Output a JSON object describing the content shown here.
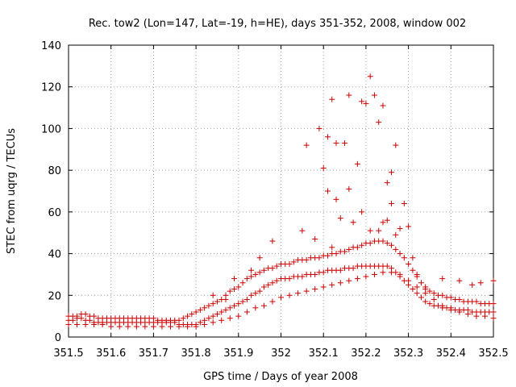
{
  "chart_data": {
    "type": "scatter",
    "title": "Rec. tow2 (Lon=147, Lat=-19, h=HE), days 351-352, 2008, window 002",
    "xlabel": "GPS time / Days of year 2008",
    "ylabel": "STEC from uqrg / TECUs",
    "xlim": [
      351.5,
      352.5
    ],
    "ylim": [
      0,
      140
    ],
    "x_ticks": [
      351.5,
      351.6,
      351.7,
      351.8,
      351.9,
      352.0,
      352.1,
      352.2,
      352.3,
      352.4,
      352.5
    ],
    "x_tick_labels": [
      "351.5",
      "351.6",
      "351.7",
      "351.8",
      "351.9",
      "352",
      "352.1",
      "352.2",
      "352.3",
      "352.4",
      "352.5"
    ],
    "y_ticks": [
      0,
      20,
      40,
      60,
      80,
      100,
      120,
      140
    ],
    "y_tick_labels": [
      "0",
      "20",
      "40",
      "60",
      "80",
      "100",
      "120",
      "140"
    ],
    "grid": true,
    "marker": "+",
    "color": "#cc0000",
    "series": [
      {
        "name": "STEC",
        "x": [
          351.5,
          351.51,
          351.52,
          351.53,
          351.54,
          351.55,
          351.56,
          351.57,
          351.58,
          351.59,
          351.6,
          351.61,
          351.62,
          351.63,
          351.64,
          351.65,
          351.66,
          351.67,
          351.68,
          351.69,
          351.7,
          351.71,
          351.72,
          351.73,
          351.74,
          351.75,
          351.76,
          351.77,
          351.78,
          351.79,
          351.8,
          351.81,
          351.82,
          351.83,
          351.84,
          351.85,
          351.86,
          351.87,
          351.88,
          351.89,
          351.9,
          351.91,
          351.92,
          351.93,
          351.94,
          351.95,
          351.96,
          351.97,
          351.98,
          351.99,
          352.0,
          352.01,
          352.02,
          352.03,
          352.04,
          352.05,
          352.06,
          352.07,
          352.08,
          352.09,
          352.1,
          352.11,
          352.12,
          352.13,
          352.14,
          352.15,
          352.16,
          352.17,
          352.18,
          352.19,
          352.2,
          352.21,
          352.22,
          352.23,
          352.24,
          352.25,
          352.26,
          352.27,
          352.28,
          352.29,
          352.3,
          352.31,
          352.32,
          352.33,
          352.34,
          352.35,
          352.36,
          352.37,
          352.38,
          352.39,
          352.4,
          352.41,
          352.42,
          352.43,
          352.44,
          352.45,
          352.46,
          352.47,
          352.48,
          352.49,
          352.5,
          351.5,
          351.51,
          351.52,
          351.53,
          351.54,
          351.55,
          351.56,
          351.57,
          351.58,
          351.59,
          351.6,
          351.61,
          351.62,
          351.63,
          351.64,
          351.65,
          351.66,
          351.67,
          351.68,
          351.69,
          351.7,
          351.71,
          351.72,
          351.73,
          351.74,
          351.75,
          351.76,
          351.77,
          351.78,
          351.79,
          351.8,
          351.81,
          351.82,
          351.83,
          351.84,
          351.85,
          351.86,
          351.87,
          351.88,
          351.89,
          351.9,
          351.91,
          351.92,
          351.93,
          351.94,
          351.95,
          351.96,
          351.97,
          351.98,
          351.99,
          352.0,
          352.01,
          352.02,
          352.03,
          352.04,
          352.05,
          352.06,
          352.07,
          352.08,
          352.09,
          352.1,
          352.11,
          352.12,
          352.13,
          352.14,
          352.15,
          352.16,
          352.17,
          352.18,
          352.19,
          352.2,
          352.21,
          352.22,
          352.23,
          352.24,
          352.25,
          352.26,
          352.27,
          352.28,
          352.29,
          352.3,
          352.31,
          352.32,
          352.33,
          352.34,
          352.35,
          352.36,
          352.37,
          352.38,
          352.39,
          352.4,
          352.41,
          352.42,
          352.43,
          352.44,
          352.45,
          352.46,
          352.47,
          352.48,
          352.49,
          352.5,
          351.5,
          351.52,
          351.54,
          351.56,
          351.58,
          351.6,
          351.62,
          351.64,
          351.66,
          351.68,
          351.7,
          351.72,
          351.74,
          351.76,
          351.78,
          351.8,
          351.82,
          351.84,
          351.86,
          351.88,
          351.9,
          351.92,
          351.94,
          351.96,
          351.98,
          352.0,
          352.02,
          352.04,
          352.06,
          352.08,
          352.1,
          352.12,
          352.14,
          352.16,
          352.18,
          352.2,
          352.22,
          352.24,
          352.26,
          352.28,
          352.3,
          352.32,
          352.34,
          352.36,
          352.38,
          352.4,
          352.42,
          352.44,
          352.46,
          352.48,
          352.5,
          352.06,
          352.09,
          352.1,
          352.11,
          352.12,
          352.13,
          352.15,
          352.16,
          352.18,
          352.19,
          352.2,
          352.21,
          352.22,
          352.23,
          352.24,
          352.25,
          352.26,
          352.27,
          352.29,
          352.3,
          352.05,
          352.08,
          352.11,
          352.13,
          352.14,
          352.17,
          352.19,
          352.21,
          352.23,
          352.25,
          352.26,
          352.28,
          352.31,
          352.32,
          352.34,
          351.98,
          351.95,
          351.93,
          351.89,
          351.84,
          351.87,
          352.38,
          352.42,
          352.45,
          352.47,
          352.5,
          352.12,
          352.16,
          352.24,
          352.27
        ],
        "y": [
          8,
          8,
          9,
          9,
          8,
          8,
          7,
          7,
          7,
          7,
          7,
          7,
          7,
          7,
          7,
          7,
          7,
          7,
          7,
          7,
          7,
          7,
          7,
          7,
          7,
          7,
          6,
          6,
          6,
          6,
          6,
          7,
          8,
          9,
          10,
          11,
          12,
          13,
          14,
          15,
          16,
          17,
          18,
          20,
          21,
          22,
          24,
          25,
          26,
          27,
          28,
          28,
          28,
          29,
          29,
          29,
          30,
          30,
          30,
          31,
          31,
          32,
          32,
          32,
          32,
          33,
          33,
          33,
          34,
          34,
          34,
          34,
          34,
          34,
          34,
          34,
          33,
          31,
          29,
          27,
          25,
          23,
          21,
          19,
          17,
          16,
          15,
          15,
          14,
          14,
          14,
          13,
          13,
          13,
          13,
          12,
          12,
          12,
          12,
          12,
          12,
          10,
          10,
          10,
          11,
          11,
          10,
          10,
          9,
          9,
          9,
          9,
          9,
          9,
          9,
          9,
          9,
          9,
          9,
          9,
          9,
          9,
          8,
          8,
          8,
          8,
          8,
          8,
          9,
          10,
          11,
          12,
          13,
          14,
          15,
          16,
          17,
          18,
          20,
          22,
          23,
          24,
          26,
          28,
          29,
          30,
          31,
          32,
          33,
          33,
          34,
          35,
          35,
          35,
          36,
          37,
          37,
          37,
          38,
          38,
          38,
          39,
          39,
          40,
          40,
          41,
          41,
          42,
          43,
          43,
          44,
          45,
          45,
          46,
          46,
          46,
          45,
          44,
          42,
          40,
          38,
          35,
          32,
          29,
          26,
          24,
          22,
          21,
          20,
          20,
          19,
          19,
          18,
          18,
          17,
          17,
          17,
          17,
          16,
          16,
          16,
          16,
          6,
          6,
          6,
          6,
          6,
          5,
          5,
          5,
          5,
          5,
          5,
          5,
          5,
          5,
          5,
          5,
          6,
          7,
          8,
          9,
          10,
          12,
          14,
          15,
          17,
          19,
          20,
          21,
          22,
          23,
          24,
          25,
          26,
          27,
          28,
          29,
          30,
          31,
          31,
          30,
          27,
          24,
          21,
          18,
          15,
          13,
          12,
          11,
          10,
          10,
          9,
          92,
          100,
          81,
          96,
          114,
          93,
          93,
          116,
          83,
          113,
          112,
          125,
          116,
          103,
          111,
          74,
          79,
          92,
          64,
          53,
          51,
          47,
          70,
          66,
          57,
          55,
          60,
          51,
          51,
          56,
          64,
          52,
          38,
          30,
          23,
          46,
          38,
          32,
          28,
          20,
          18,
          28,
          27,
          25,
          26,
          27,
          43,
          71,
          55,
          49
        ]
      }
    ]
  }
}
